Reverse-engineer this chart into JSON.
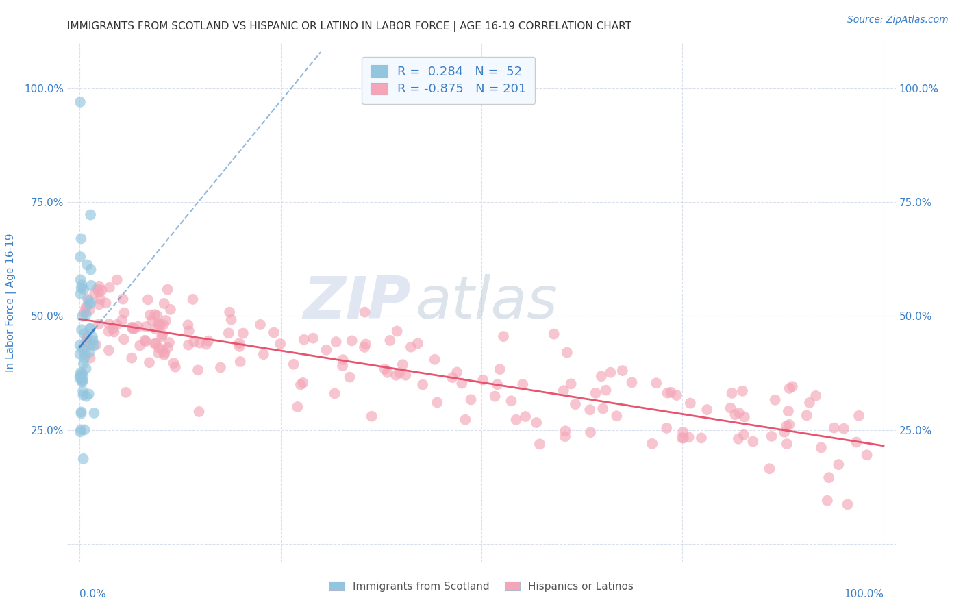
{
  "title": "IMMIGRANTS FROM SCOTLAND VS HISPANIC OR LATINO IN LABOR FORCE | AGE 16-19 CORRELATION CHART",
  "source": "Source: ZipAtlas.com",
  "ylabel": "In Labor Force | Age 16-19",
  "r_blue": 0.284,
  "n_blue": 52,
  "r_pink": -0.875,
  "n_pink": 201,
  "blue_color": "#92c5de",
  "pink_color": "#f4a6b8",
  "blue_line_color": "#3a7ec6",
  "pink_line_color": "#e8536e",
  "watermark_zip": "ZIP",
  "watermark_atlas": "atlas",
  "watermark_color_zip": "#c8d4e8",
  "watermark_color_atlas": "#c0ccdc",
  "background_color": "#ffffff",
  "title_fontsize": 11,
  "title_color": "#333333",
  "source_color": "#3a7ec6",
  "axis_label_color": "#3a7ec6",
  "grid_color": "#d0d8e8",
  "legend_box_color": "#f4f8ff",
  "tick_label_color": "#3a7ec6"
}
